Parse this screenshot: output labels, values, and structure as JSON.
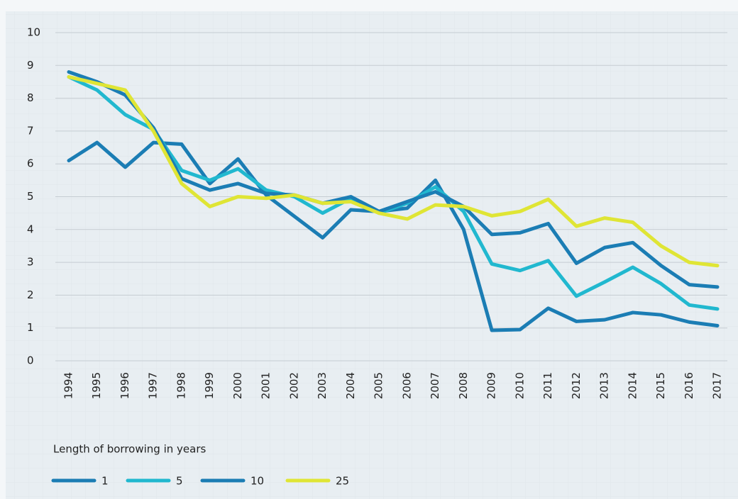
{
  "chart_data": {
    "type": "line",
    "categories": [
      "1994",
      "1995",
      "1996",
      "1997",
      "1998",
      "1999",
      "2000",
      "2001",
      "2002",
      "2003",
      "2004",
      "2005",
      "2006",
      "2007",
      "2008",
      "2009",
      "2010",
      "2011",
      "2012",
      "2013",
      "2014",
      "2015",
      "2016",
      "2017"
    ],
    "series": [
      {
        "name": "1",
        "color": "#1b7db4",
        "values": [
          6.1,
          6.65,
          5.9,
          6.65,
          6.6,
          5.4,
          6.15,
          5.05,
          4.4,
          3.75,
          4.6,
          4.55,
          4.65,
          5.5,
          4.0,
          0.93,
          0.95,
          1.6,
          1.2,
          1.25,
          1.47,
          1.4,
          1.18,
          1.07
        ]
      },
      {
        "name": "5",
        "color": "#21b8cf",
        "values": [
          8.65,
          8.25,
          7.5,
          7.05,
          5.8,
          5.5,
          5.85,
          5.2,
          5.0,
          4.5,
          4.95,
          4.5,
          4.8,
          5.3,
          4.55,
          2.95,
          2.75,
          3.05,
          1.97,
          2.4,
          2.85,
          2.35,
          1.7,
          1.58
        ]
      },
      {
        "name": "10",
        "color": "#1b7db4",
        "values": [
          8.8,
          8.5,
          8.1,
          7.1,
          5.55,
          5.2,
          5.4,
          5.1,
          5.05,
          4.8,
          5.0,
          4.55,
          4.85,
          5.15,
          4.7,
          3.85,
          3.9,
          4.18,
          2.97,
          3.45,
          3.6,
          2.9,
          2.32,
          2.25
        ]
      },
      {
        "name": "25",
        "color": "#dfe535",
        "values": [
          8.65,
          8.45,
          8.25,
          7.0,
          5.4,
          4.7,
          5.0,
          4.95,
          5.05,
          4.8,
          4.85,
          4.5,
          4.32,
          4.75,
          4.7,
          4.42,
          4.55,
          4.92,
          4.1,
          4.35,
          4.22,
          3.5,
          3.0,
          2.9
        ]
      }
    ],
    "ylim": [
      0,
      10
    ],
    "yticks": [
      0,
      1,
      2,
      3,
      4,
      5,
      6,
      7,
      8,
      9,
      10
    ],
    "grid": true,
    "legend_title": "Length of borrowing in years"
  }
}
